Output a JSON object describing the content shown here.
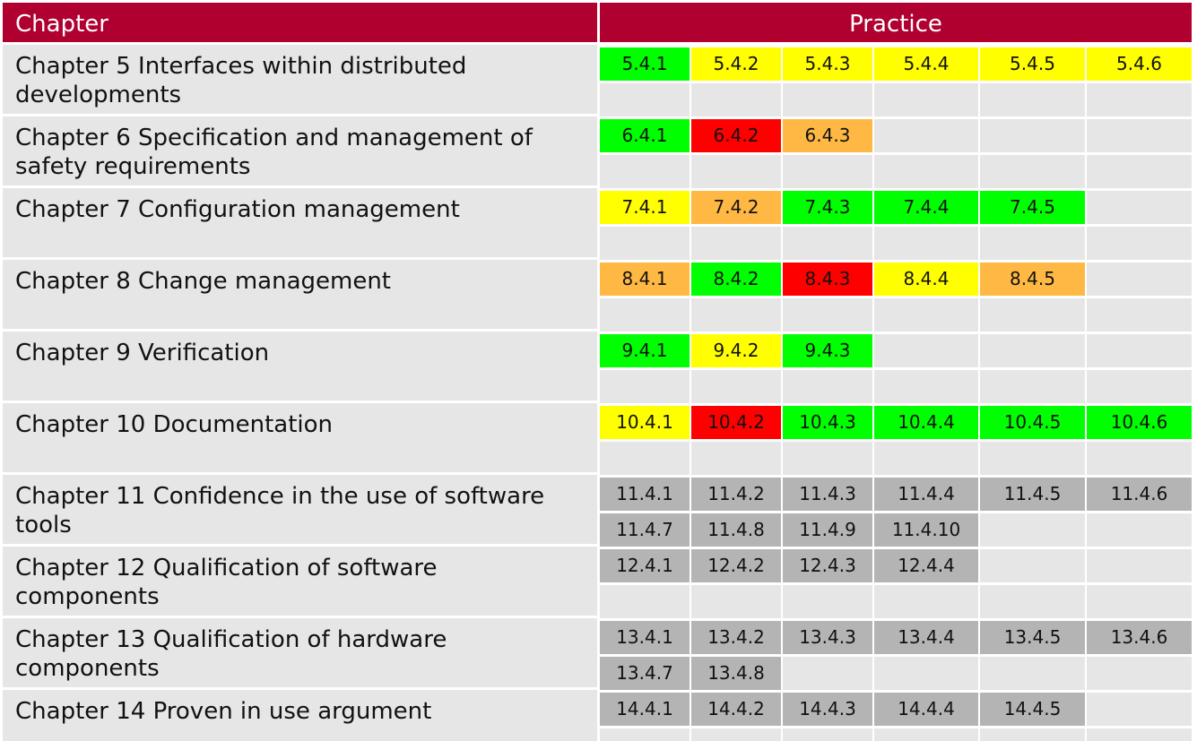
{
  "header": {
    "chapter_label": "Chapter",
    "practice_label": "Practice"
  },
  "colors": {
    "header_bg": "#b00030",
    "green": "#00ff00",
    "yellow": "#ffff00",
    "orange": "#ffb844",
    "red": "#ff0000",
    "gray": "#b4b4b4",
    "empty": "#e6e6e6"
  },
  "chapters": [
    {
      "title": "Chapter 5 Interfaces within distributed developments",
      "practices": [
        [
          "5.4.1",
          "green"
        ],
        [
          "5.4.2",
          "yellow"
        ],
        [
          "5.4.3",
          "yellow"
        ],
        [
          "5.4.4",
          "yellow"
        ],
        [
          "5.4.5",
          "yellow"
        ],
        [
          "5.4.6",
          "yellow"
        ]
      ]
    },
    {
      "title": "Chapter 6 Specification and management of safety requirements",
      "practices": [
        [
          "6.4.1",
          "green"
        ],
        [
          "6.4.2",
          "red"
        ],
        [
          "6.4.3",
          "orange"
        ]
      ]
    },
    {
      "title": "Chapter 7 Configuration management",
      "practices": [
        [
          "7.4.1",
          "yellow"
        ],
        [
          "7.4.2",
          "orange"
        ],
        [
          "7.4.3",
          "green"
        ],
        [
          "7.4.4",
          "green"
        ],
        [
          "7.4.5",
          "green"
        ]
      ]
    },
    {
      "title": "Chapter 8 Change management",
      "practices": [
        [
          "8.4.1",
          "orange"
        ],
        [
          "8.4.2",
          "green"
        ],
        [
          "8.4.3",
          "red"
        ],
        [
          "8.4.4",
          "yellow"
        ],
        [
          "8.4.5",
          "orange"
        ]
      ]
    },
    {
      "title": "Chapter 9 Verification",
      "practices": [
        [
          "9.4.1",
          "green"
        ],
        [
          "9.4.2",
          "yellow"
        ],
        [
          "9.4.3",
          "green"
        ]
      ]
    },
    {
      "title": "Chapter 10 Documentation",
      "practices": [
        [
          "10.4.1",
          "yellow"
        ],
        [
          "10.4.2",
          "red"
        ],
        [
          "10.4.3",
          "green"
        ],
        [
          "10.4.4",
          "green"
        ],
        [
          "10.4.5",
          "green"
        ],
        [
          "10.4.6",
          "green"
        ]
      ]
    },
    {
      "title": "Chapter 11 Confidence in the use of software tools",
      "practices": [
        [
          "11.4.1",
          "gray"
        ],
        [
          "11.4.2",
          "gray"
        ],
        [
          "11.4.3",
          "gray"
        ],
        [
          "11.4.4",
          "gray"
        ],
        [
          "11.4.5",
          "gray"
        ],
        [
          "11.4.6",
          "gray"
        ],
        [
          "11.4.7",
          "gray"
        ],
        [
          "11.4.8",
          "gray"
        ],
        [
          "11.4.9",
          "gray"
        ],
        [
          "11.4.10",
          "gray"
        ]
      ]
    },
    {
      "title": "Chapter 12 Qualification of software components",
      "practices": [
        [
          "12.4.1",
          "gray"
        ],
        [
          "12.4.2",
          "gray"
        ],
        [
          "12.4.3",
          "gray"
        ],
        [
          "12.4.4",
          "gray"
        ]
      ]
    },
    {
      "title": "Chapter 13 Qualification of hardware components",
      "practices": [
        [
          "13.4.1",
          "gray"
        ],
        [
          "13.4.2",
          "gray"
        ],
        [
          "13.4.3",
          "gray"
        ],
        [
          "13.4.4",
          "gray"
        ],
        [
          "13.4.5",
          "gray"
        ],
        [
          "13.4.6",
          "gray"
        ],
        [
          "13.4.7",
          "gray"
        ],
        [
          "13.4.8",
          "gray"
        ]
      ]
    },
    {
      "title": "Chapter 14 Proven in use argument",
      "practices": [
        [
          "14.4.1",
          "gray"
        ],
        [
          "14.4.2",
          "gray"
        ],
        [
          "14.4.3",
          "gray"
        ],
        [
          "14.4.4",
          "gray"
        ],
        [
          "14.4.5",
          "gray"
        ]
      ]
    }
  ]
}
